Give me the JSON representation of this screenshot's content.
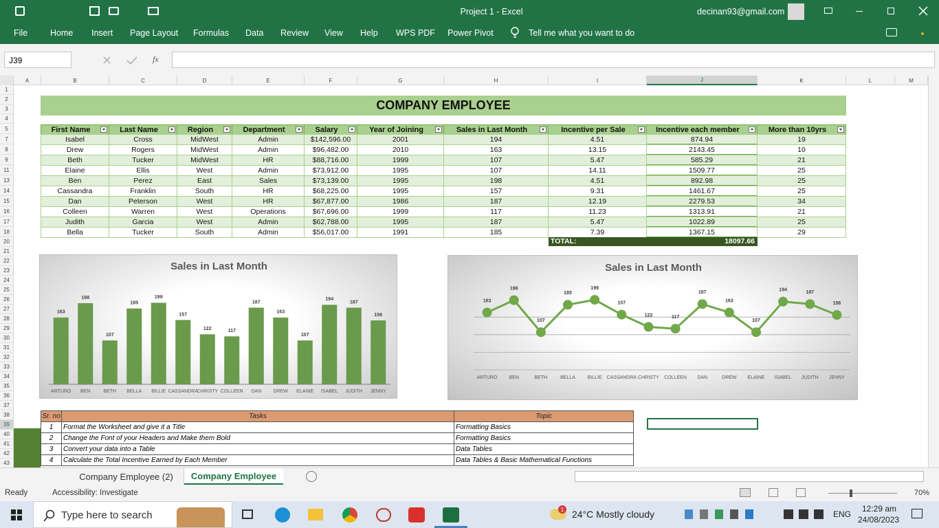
{
  "window": {
    "title": "Project 1  -  Excel",
    "account": "decinan93@gmail.com"
  },
  "ribbon": {
    "tabs": [
      "File",
      "Home",
      "Insert",
      "Page Layout",
      "Formulas",
      "Data",
      "Review",
      "View",
      "Help",
      "WPS PDF",
      "Power Pivot"
    ],
    "tell_me": "Tell me what you want to do"
  },
  "formula_bar": {
    "name_box": "J39",
    "fx": "fx"
  },
  "grid": {
    "columns": [
      "A",
      "B",
      "C",
      "D",
      "E",
      "F",
      "G",
      "H",
      "I",
      "J",
      "K",
      "L",
      "M"
    ],
    "rows": [
      1,
      2,
      3,
      4,
      5,
      7,
      8,
      9,
      11,
      13,
      14,
      15,
      16,
      17,
      18,
      20,
      21,
      22,
      23,
      24,
      25,
      26,
      27,
      28,
      29,
      30,
      31,
      32,
      33,
      34,
      35,
      36,
      37,
      38,
      39,
      40,
      41,
      42,
      43
    ]
  },
  "sheet": {
    "title": "COMPANY EMPLOYEE",
    "table": {
      "headers": [
        "First Name",
        "Last Name",
        "Region",
        "Department",
        "Salary",
        "Year of Joining",
        "Sales in Last Month",
        "Incentive per Sale",
        "Incentive each member",
        "More than 10yrs"
      ],
      "rows": [
        [
          "Isabel",
          "Cross",
          "MidWest",
          "Admin",
          "$142,596.00",
          "2001",
          "194",
          "4.51",
          "874.94",
          "19"
        ],
        [
          "Drew",
          "Rogers",
          "MidWest",
          "Admin",
          "$96,482.00",
          "2010",
          "163",
          "13.15",
          "2143.45",
          "10"
        ],
        [
          "Beth",
          "Tucker",
          "MidWest",
          "HR",
          "$88,716.00",
          "1999",
          "107",
          "5.47",
          "585.29",
          "21"
        ],
        [
          "Elaine",
          "Ellis",
          "West",
          "Admin",
          "$73,912.00",
          "1995",
          "107",
          "14.11",
          "1509.77",
          "25"
        ],
        [
          "Ben",
          "Perez",
          "East",
          "Sales",
          "$73,139.00",
          "1995",
          "198",
          "4.51",
          "892.98",
          "25"
        ],
        [
          "Cassandra",
          "Franklin",
          "South",
          "HR",
          "$68,225.00",
          "1995",
          "157",
          "9.31",
          "1461.67",
          "25"
        ],
        [
          "Dan",
          "Peterson",
          "West",
          "HR",
          "$67,877.00",
          "1986",
          "187",
          "12.19",
          "2279.53",
          "34"
        ],
        [
          "Colleen",
          "Warren",
          "West",
          "Operations",
          "$67,696.00",
          "1999",
          "117",
          "11.23",
          "1313.91",
          "21"
        ],
        [
          "Judith",
          "Garcia",
          "West",
          "Admin",
          "$62,788.00",
          "1995",
          "187",
          "5.47",
          "1022.89",
          "25"
        ],
        [
          "Bella",
          "Tucker",
          "South",
          "Admin",
          "$56,017.00",
          "1991",
          "185",
          "7.39",
          "1367.15",
          "29"
        ]
      ]
    },
    "total": {
      "label": "TOTAL:",
      "value": "18097.66"
    }
  },
  "chart_data": [
    {
      "type": "bar",
      "title": "Sales in Last Month",
      "categories": [
        "ARTURO",
        "BEN",
        "BETH",
        "BELLA",
        "BILLIE",
        "CASSANDRA",
        "CHRISTY",
        "COLLEEN",
        "DAN",
        "DREW",
        "ELAINE",
        "ISABEL",
        "JUDITH",
        "JENNY"
      ],
      "values": [
        163,
        198,
        107,
        185,
        199,
        157,
        122,
        117,
        187,
        163,
        107,
        194,
        187,
        156
      ],
      "color": "#6a9a4b",
      "ylim": [
        0,
        250
      ]
    },
    {
      "type": "line",
      "title": "Sales in Last Month",
      "categories": [
        "ARTURO",
        "BEN",
        "BETH",
        "BELLA",
        "BILLIE",
        "CASSANDRA",
        "CHRISTY",
        "COLLEEN",
        "DAN",
        "DREW",
        "ELAINE",
        "ISABEL",
        "JUDITH",
        "JENNY"
      ],
      "values": [
        163,
        198,
        107,
        185,
        199,
        157,
        122,
        117,
        187,
        163,
        107,
        194,
        187,
        156
      ],
      "color": "#70a84a",
      "ylim": [
        0,
        250
      ],
      "yticks": [
        0,
        50,
        100,
        150
      ],
      "tick_labels": false,
      "grid": true
    }
  ],
  "tasks": {
    "headers": [
      "Sr. no",
      "Tasks",
      "Topic"
    ],
    "rows": [
      [
        "1",
        "Format the Worksheet and give it a Title",
        "Formatting Basics"
      ],
      [
        "2",
        "Change the Font of your Headers and Make them Bold",
        "Formatting Basics"
      ],
      [
        "3",
        "Convert your data into a Table",
        "Data Tables"
      ],
      [
        "4",
        "Calculate the Total Incentive Earned by Each Member",
        "Data Tables & Basic Mathematical Functions"
      ]
    ]
  },
  "sheet_tabs": [
    "Company Employee (2)",
    "Company Employee"
  ],
  "status": {
    "mode": "Ready",
    "accessibility": "Accessibility: Investigate",
    "zoom": "70%"
  },
  "taskbar": {
    "search": "Type here to search",
    "weather": "24°C  Mostly cloudy",
    "badge": "1",
    "language": "ENG",
    "time": "12:29 am",
    "date": "24/08/2023"
  }
}
